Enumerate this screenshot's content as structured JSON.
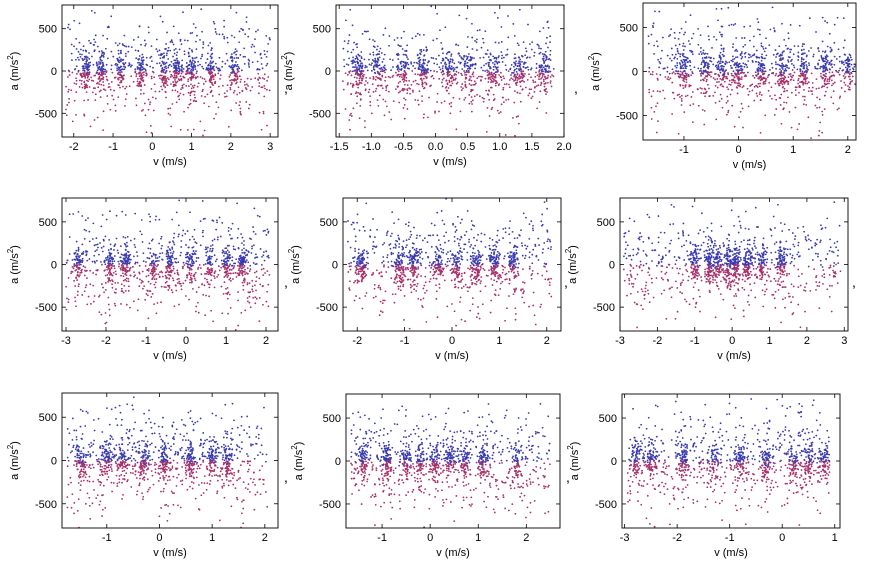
{
  "colors": {
    "positive": "#3a3ab0",
    "negative": "#a8306a"
  },
  "separator": ",",
  "chart_data": [
    {
      "type": "scatter",
      "xlabel": "v (m/s)",
      "ylabel_main": "a (m/s",
      "ylabel_exp": "2",
      "ylabel_close": ")",
      "xlim": [
        -2.3,
        3.2
      ],
      "ylim": [
        -780,
        780
      ],
      "xticks": [
        -2,
        -1,
        0,
        1,
        2,
        3
      ],
      "yticks": [
        -500,
        0,
        500
      ],
      "clusters": [
        -1.7,
        -1.3,
        -0.8,
        -0.3,
        0.3,
        0.6,
        1.0,
        1.5,
        2.1
      ],
      "band": 60,
      "seed": 11
    },
    {
      "type": "scatter",
      "xlabel": "v (m/s)",
      "ylabel_main": "a (m/s",
      "ylabel_exp": "2",
      "ylabel_close": ")",
      "xlim": [
        -1.55,
        2.0
      ],
      "ylim": [
        -780,
        780
      ],
      "xticks": [
        -1.5,
        -1.0,
        -0.5,
        0.0,
        0.5,
        1.0,
        1.5,
        2.0
      ],
      "yticks": [
        -500,
        0,
        500
      ],
      "clusters": [
        -1.2,
        -0.9,
        -0.5,
        -0.2,
        0.2,
        0.5,
        0.9,
        1.3,
        1.7
      ],
      "band": 60,
      "seed": 23
    },
    {
      "type": "scatter",
      "xlabel": "v (m/s)",
      "ylabel_main": "a (m/s",
      "ylabel_exp": "2",
      "ylabel_close": ")",
      "xlim": [
        -1.75,
        2.15
      ],
      "ylim": [
        -780,
        780
      ],
      "xticks": [
        -1,
        0,
        1,
        2
      ],
      "yticks": [
        -500,
        0,
        500
      ],
      "clusters": [
        -1.0,
        -0.6,
        -0.3,
        0.0,
        0.4,
        0.8,
        1.2,
        1.6,
        2.0
      ],
      "band": 60,
      "seed": 37
    },
    {
      "type": "scatter",
      "xlabel": "v (m/s)",
      "ylabel_main": "a (m/s",
      "ylabel_exp": "2",
      "ylabel_close": ")",
      "xlim": [
        -3.1,
        2.3
      ],
      "ylim": [
        -780,
        780
      ],
      "xticks": [
        -3,
        -2,
        -1,
        0,
        1,
        2
      ],
      "yticks": [
        -500,
        0,
        500
      ],
      "clusters": [
        -2.7,
        -1.9,
        -1.5,
        -0.8,
        -0.4,
        0.1,
        0.6,
        1.0,
        1.4
      ],
      "band": 60,
      "seed": 41
    },
    {
      "type": "scatter",
      "xlabel": "v (m/s)",
      "ylabel_main": "a (m/s",
      "ylabel_exp": "2",
      "ylabel_close": ")",
      "xlim": [
        -2.3,
        2.3
      ],
      "ylim": [
        -780,
        780
      ],
      "xticks": [
        -2,
        -1,
        0,
        1,
        2
      ],
      "yticks": [
        -500,
        0,
        500
      ],
      "clusters": [
        -1.9,
        -1.1,
        -0.8,
        -0.3,
        0.1,
        0.5,
        0.9,
        1.3
      ],
      "band": 60,
      "seed": 53
    },
    {
      "type": "scatter",
      "xlabel": "v (m/s)",
      "ylabel_main": "a (m/s",
      "ylabel_exp": "2",
      "ylabel_close": ")",
      "xlim": [
        -3.0,
        3.1
      ],
      "ylim": [
        -780,
        780
      ],
      "xticks": [
        -3,
        -2,
        -1,
        0,
        1,
        2,
        3
      ],
      "yticks": [
        -500,
        0,
        500
      ],
      "clusters": [
        -1.0,
        -0.6,
        -0.4,
        -0.1,
        0.1,
        0.4,
        0.8,
        1.3
      ],
      "band": 60,
      "seed": 67
    },
    {
      "type": "scatter",
      "xlabel": "v (m/s)",
      "ylabel_main": "a (m/s",
      "ylabel_exp": "2",
      "ylabel_close": ")",
      "xlim": [
        -1.85,
        2.25
      ],
      "ylim": [
        -780,
        780
      ],
      "xticks": [
        -1,
        0,
        1,
        2
      ],
      "yticks": [
        -500,
        0,
        500
      ],
      "clusters": [
        -1.5,
        -1.0,
        -0.7,
        -0.3,
        0.1,
        0.6,
        1.0,
        1.3
      ],
      "band": 60,
      "seed": 71
    },
    {
      "type": "scatter",
      "xlabel": "v (m/s)",
      "ylabel_main": "a (m/s",
      "ylabel_exp": "2",
      "ylabel_close": ")",
      "xlim": [
        -1.75,
        2.7
      ],
      "ylim": [
        -780,
        780
      ],
      "xticks": [
        -1,
        0,
        1,
        2
      ],
      "yticks": [
        -500,
        0,
        500
      ],
      "clusters": [
        -1.4,
        -0.9,
        -0.5,
        -0.2,
        0.1,
        0.4,
        0.7,
        1.1,
        1.8
      ],
      "band": 60,
      "seed": 83
    },
    {
      "type": "scatter",
      "xlabel": "v (m/s)",
      "ylabel_main": "a (m/s",
      "ylabel_exp": "2",
      "ylabel_close": ")",
      "xlim": [
        -3.05,
        1.1
      ],
      "ylim": [
        -780,
        780
      ],
      "xticks": [
        -3,
        -2,
        -1,
        0,
        1
      ],
      "yticks": [
        -500,
        0,
        500
      ],
      "clusters": [
        -2.8,
        -2.5,
        -1.9,
        -1.3,
        -0.8,
        -0.3,
        0.2,
        0.5,
        0.8
      ],
      "band": 60,
      "seed": 97
    }
  ]
}
